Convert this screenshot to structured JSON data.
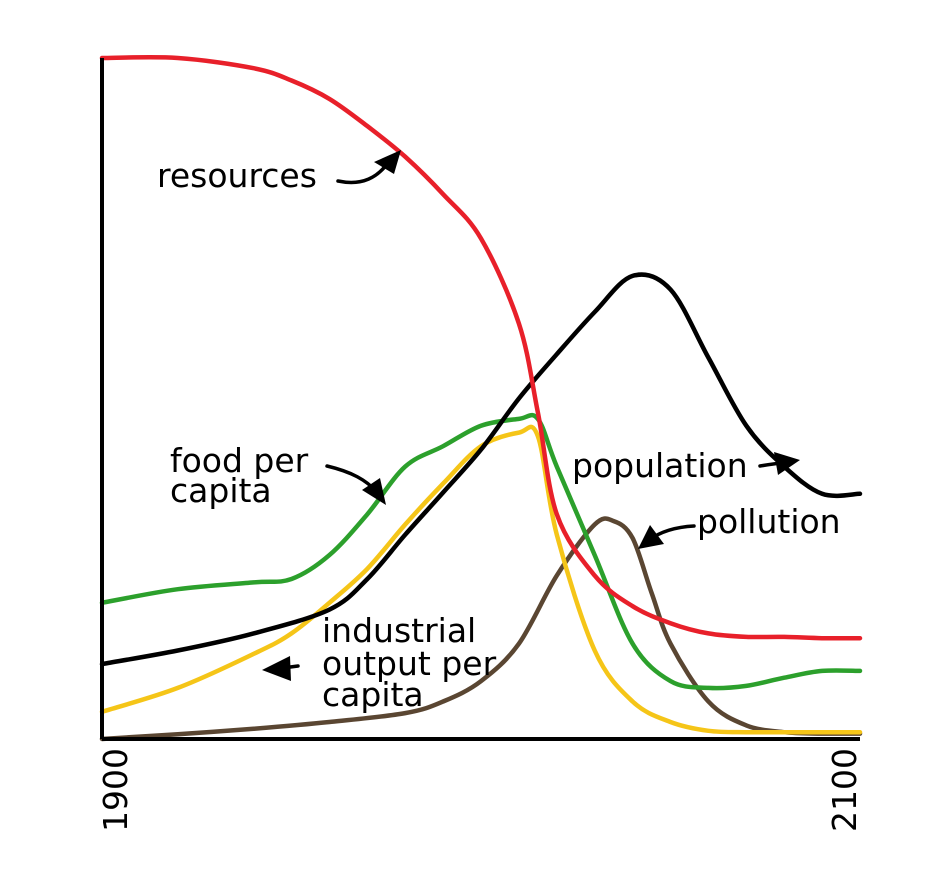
{
  "chart_data": {
    "type": "line",
    "title": "",
    "xlabel": "",
    "ylabel": "",
    "xlim": [
      1900,
      2100
    ],
    "ylim": [
      0,
      1
    ],
    "grid": false,
    "x_tick_labels": [
      "1900",
      "2100"
    ],
    "series": [
      {
        "name": "resources",
        "color": "#e8202a",
        "x": [
          1900,
          1920,
          1940,
          1950,
          1960,
          1970,
          1980,
          1990,
          2000,
          2010,
          2015,
          2020,
          2030,
          2040,
          2050,
          2060,
          2070,
          2080,
          2090,
          2100
        ],
        "y": [
          1.0,
          1.0,
          0.985,
          0.967,
          0.94,
          0.9,
          0.855,
          0.8,
          0.735,
          0.61,
          0.48,
          0.33,
          0.24,
          0.195,
          0.17,
          0.155,
          0.15,
          0.15,
          0.148,
          0.148
        ]
      },
      {
        "name": "population",
        "color": "#000000",
        "x": [
          1900,
          1920,
          1940,
          1960,
          1970,
          1980,
          1990,
          2000,
          2010,
          2020,
          2030,
          2040,
          2050,
          2060,
          2070,
          2080,
          2090,
          2100
        ],
        "y": [
          0.11,
          0.13,
          0.155,
          0.19,
          0.235,
          0.3,
          0.362,
          0.425,
          0.5,
          0.565,
          0.627,
          0.68,
          0.66,
          0.56,
          0.46,
          0.4,
          0.36,
          0.36
        ]
      },
      {
        "name": "food per capita",
        "color": "#2ca02c",
        "x": [
          1900,
          1920,
          1940,
          1950,
          1960,
          1970,
          1980,
          1990,
          2000,
          2010,
          2015,
          2020,
          2030,
          2040,
          2050,
          2060,
          2070,
          2080,
          2090,
          2100
        ],
        "y": [
          0.2,
          0.22,
          0.23,
          0.235,
          0.27,
          0.33,
          0.4,
          0.43,
          0.46,
          0.47,
          0.47,
          0.4,
          0.27,
          0.14,
          0.085,
          0.075,
          0.078,
          0.09,
          0.1,
          0.1
        ]
      },
      {
        "name": "industrial output per capita",
        "color": "#f5c518",
        "x": [
          1900,
          1920,
          1940,
          1950,
          1960,
          1970,
          1980,
          1990,
          2000,
          2010,
          2015,
          2020,
          2030,
          2040,
          2050,
          2060,
          2070,
          2080,
          2090,
          2100
        ],
        "y": [
          0.04,
          0.075,
          0.125,
          0.155,
          0.2,
          0.25,
          0.315,
          0.375,
          0.43,
          0.45,
          0.445,
          0.3,
          0.13,
          0.055,
          0.025,
          0.012,
          0.01,
          0.01,
          0.01,
          0.01
        ]
      },
      {
        "name": "pollution",
        "color": "#5a4632",
        "x": [
          1900,
          1920,
          1940,
          1960,
          1980,
          1990,
          2000,
          2010,
          2020,
          2030,
          2035,
          2040,
          2045,
          2050,
          2060,
          2070,
          2080,
          2090,
          2100
        ],
        "y": [
          0.0,
          0.007,
          0.015,
          0.025,
          0.038,
          0.055,
          0.085,
          0.14,
          0.24,
          0.315,
          0.32,
          0.295,
          0.215,
          0.14,
          0.055,
          0.02,
          0.01,
          0.008,
          0.008
        ]
      }
    ],
    "annotations": [
      {
        "text_lines": [
          "resources"
        ],
        "series": "resources"
      },
      {
        "text_lines": [
          "population"
        ],
        "series": "population"
      },
      {
        "text_lines": [
          "food per",
          "capita"
        ],
        "series": "food per capita"
      },
      {
        "text_lines": [
          "industrial",
          "output per",
          "capita"
        ],
        "series": "industrial output per capita"
      },
      {
        "text_lines": [
          "pollution"
        ],
        "series": "pollution"
      }
    ]
  }
}
